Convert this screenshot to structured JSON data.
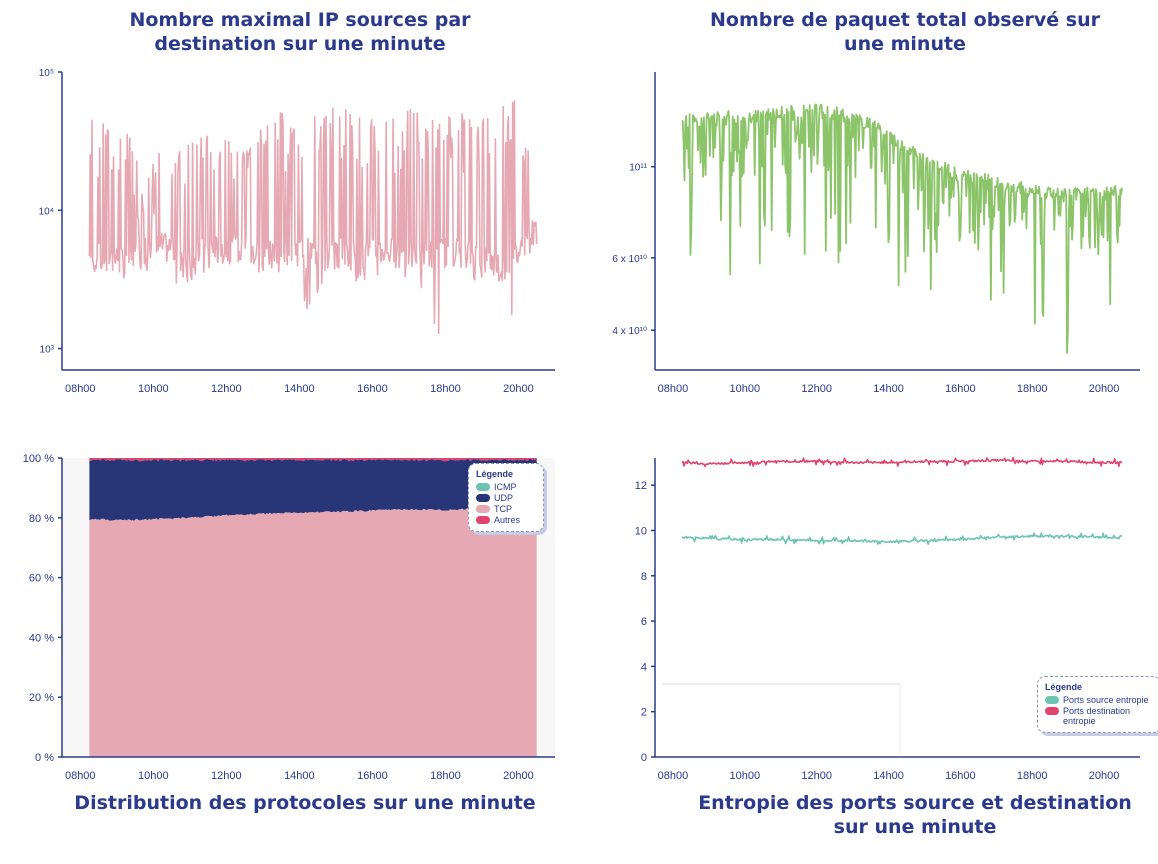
{
  "titles": {
    "tl": "Nombre maximal IP sources par destination sur une minute",
    "tr": "Nombre de paquet total observé sur une minute",
    "bl": "Distribution des protocoles sur une minute",
    "br": "Entropie des ports source et destination sur une minute"
  },
  "legends": {
    "protocols": {
      "title": "Légende",
      "items": [
        "ICMP",
        "UDP",
        "TCP",
        "Autres"
      ]
    },
    "entropy": {
      "title": "Légende",
      "items": [
        "Ports source entropie",
        "Ports destination entropie"
      ]
    }
  },
  "colors": {
    "pink": "#e6a9b3",
    "green": "#8cc46a",
    "navy": "#283576",
    "red": "#e0446e",
    "teal": "#6ec4b2",
    "axis": "#2b3a8c"
  },
  "chart_data": [
    {
      "id": "sources",
      "type": "line",
      "title": "Nombre maximal IP sources par destination sur une minute",
      "yscale": "log",
      "ylim": [
        700,
        100000
      ],
      "xlim": [
        7.5,
        21
      ],
      "x_ticks": [
        "08h00",
        "10h00",
        "12h00",
        "14h00",
        "16h00",
        "18h00",
        "20h00"
      ],
      "y_ticks": [
        "10³",
        "10⁴",
        "10⁵"
      ],
      "series": [
        {
          "x": [
            8.25,
            8.75,
            9.25,
            9.75,
            10.25,
            10.75,
            11.25,
            11.75,
            12.25,
            12.75,
            13.25,
            13.75,
            14.25,
            14.75,
            15.25,
            15.75,
            16.25,
            16.75,
            17.25,
            17.75,
            18.25,
            18.75,
            19.25,
            19.75,
            20.0,
            20.5
          ],
          "baseline": [
            4500,
            4800,
            4200,
            5000,
            5500,
            5200,
            5000,
            5300,
            5500,
            5000,
            5200,
            5400,
            5000,
            5300,
            5000,
            4800,
            5200,
            5000,
            4800,
            5000,
            5200,
            4800,
            4300,
            4000,
            5000,
            7500
          ],
          "peak": [
            50000,
            40000,
            38000,
            17000,
            30000,
            32000,
            40000,
            45000,
            48000,
            45000,
            48000,
            55000,
            50000,
            65000,
            60000,
            45000,
            50000,
            52000,
            55000,
            45000,
            50000,
            55000,
            50000,
            70000,
            60000,
            55000
          ],
          "trough": [
            3200,
            3500,
            3300,
            3800,
            3500,
            3000,
            3500,
            3800,
            3600,
            3500,
            3600,
            3800,
            1700,
            3500,
            3000,
            3200,
            3500,
            3400,
            2800,
            1100,
            3000,
            3300,
            3200,
            2200,
            800,
            5500
          ]
        }
      ]
    },
    {
      "id": "packets",
      "type": "line",
      "title": "Nombre de paquet total observé sur une minute",
      "yscale": "log",
      "ylim": [
        32000000000,
        170000000000
      ],
      "xlim": [
        7.5,
        21
      ],
      "x_ticks": [
        "08h00",
        "10h00",
        "12h00",
        "14h00",
        "16h00",
        "18h00",
        "20h00"
      ],
      "y_ticks": [
        "4 x 10¹⁰",
        "6 x 10¹⁰",
        "10¹¹"
      ],
      "series": [
        {
          "x": [
            8.25,
            9.0,
            10.0,
            11.0,
            12.0,
            13.0,
            14.0,
            15.0,
            16.0,
            17.0,
            18.0,
            19.0,
            20.0,
            20.5
          ],
          "values": [
            130000000000,
            132000000000,
            134000000000,
            136000000000,
            138000000000,
            134000000000,
            120000000000,
            104000000000,
            96000000000,
            92000000000,
            88000000000,
            86000000000,
            87000000000,
            88000000000
          ],
          "dips": [
            61000000000,
            58000000000,
            56000000000,
            58000000000,
            55000000000,
            57000000000,
            50000000000,
            52000000000,
            50000000000,
            45000000000,
            35000000000,
            34000000000,
            33000000000,
            62000000000
          ]
        }
      ]
    },
    {
      "id": "protocols",
      "type": "area",
      "title": "Distribution des protocoles sur une minute",
      "ylim": [
        0,
        100
      ],
      "xlim": [
        7.5,
        21
      ],
      "x_ticks": [
        "08h00",
        "10h00",
        "12h00",
        "14h00",
        "16h00",
        "18h00",
        "20h00"
      ],
      "y_ticks": [
        "0 %",
        "20 %",
        "40 %",
        "60 %",
        "80 %",
        "100 %"
      ],
      "x": [
        8.25,
        9.0,
        10.0,
        11.0,
        12.0,
        13.0,
        14.0,
        15.0,
        16.0,
        17.0,
        18.0,
        19.0,
        20.0,
        20.5
      ],
      "series": [
        {
          "name": "TCP",
          "values": [
            79.5,
            79.2,
            79.5,
            80.0,
            80.8,
            81.3,
            81.7,
            82.0,
            82.4,
            82.8,
            82.6,
            83.1,
            83.4,
            83.5
          ]
        },
        {
          "name": "UDP",
          "values": [
            19.8,
            20.1,
            19.8,
            19.3,
            18.5,
            18.0,
            17.6,
            17.3,
            16.9,
            16.5,
            16.7,
            16.2,
            15.9,
            15.8
          ]
        },
        {
          "name": "Autres",
          "values": [
            0.7,
            0.7,
            0.7,
            0.7,
            0.7,
            0.7,
            0.7,
            0.7,
            0.7,
            0.7,
            0.7,
            0.7,
            0.7,
            0.7
          ]
        },
        {
          "name": "ICMP",
          "values": [
            0.05,
            0.05,
            0.05,
            0.05,
            0.05,
            0.05,
            0.05,
            0.05,
            0.05,
            0.05,
            0.05,
            0.05,
            0.05,
            0.05
          ]
        }
      ]
    },
    {
      "id": "entropy",
      "type": "line",
      "title": "Entropie des ports source et destination sur une minute",
      "ylim": [
        0,
        13.2
      ],
      "xlim": [
        7.5,
        21
      ],
      "x_ticks": [
        "08h00",
        "10h00",
        "12h00",
        "14h00",
        "16h00",
        "18h00",
        "20h00"
      ],
      "y_ticks": [
        "0",
        "2",
        "4",
        "6",
        "8",
        "10",
        "12"
      ],
      "x": [
        8.25,
        9.0,
        10.0,
        11.0,
        12.0,
        13.0,
        14.0,
        15.0,
        16.0,
        17.0,
        18.0,
        19.0,
        20.0,
        20.5
      ],
      "series": [
        {
          "name": "Ports source entropie",
          "values": [
            9.7,
            9.65,
            9.6,
            9.6,
            9.55,
            9.55,
            9.5,
            9.55,
            9.6,
            9.7,
            9.75,
            9.75,
            9.7,
            9.65
          ]
        },
        {
          "name": "Ports destination entropie",
          "values": [
            13.0,
            12.95,
            13.0,
            13.05,
            13.05,
            13.0,
            13.0,
            13.05,
            13.05,
            13.1,
            13.05,
            13.05,
            13.0,
            13.0
          ]
        }
      ]
    }
  ]
}
